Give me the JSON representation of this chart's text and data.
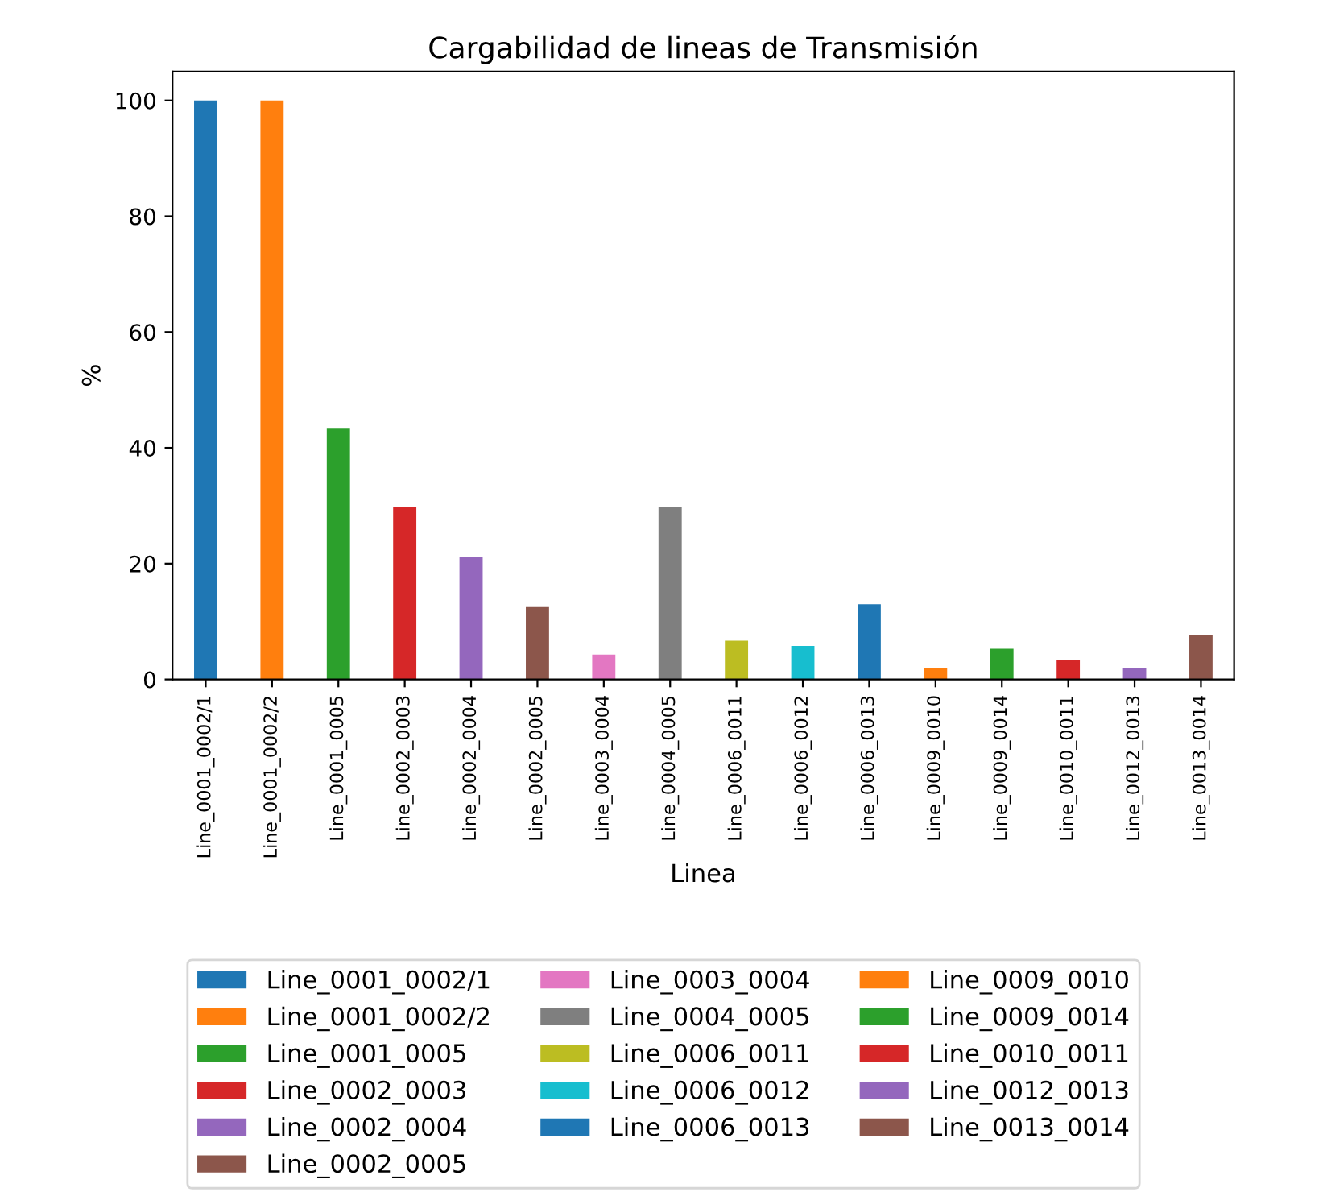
{
  "chart_data": {
    "type": "bar",
    "title": "Cargabilidad de lineas de Transmisión",
    "xlabel": "Linea",
    "ylabel": "%",
    "categories": [
      "Line_0001_0002/1",
      "Line_0001_0002/2",
      "Line_0001_0005",
      "Line_0002_0003",
      "Line_0002_0004",
      "Line_0002_0005",
      "Line_0003_0004",
      "Line_0004_0005",
      "Line_0006_0011",
      "Line_0006_0012",
      "Line_0006_0013",
      "Line_0009_0010",
      "Line_0009_0014",
      "Line_0010_0011",
      "Line_0012_0013",
      "Line_0013_0014"
    ],
    "series": [
      {
        "name": "Line_0001_0002/1",
        "color": "#1f77b4",
        "values": [
          100,
          null,
          null,
          null,
          null,
          null,
          null,
          null,
          null,
          null,
          null,
          null,
          null,
          null,
          null,
          null
        ]
      },
      {
        "name": "Line_0001_0002/2",
        "color": "#ff7f0e",
        "values": [
          null,
          100,
          null,
          null,
          null,
          null,
          null,
          null,
          null,
          null,
          null,
          null,
          null,
          null,
          null,
          null
        ]
      },
      {
        "name": "Line_0001_0005",
        "color": "#2ca02c",
        "values": [
          null,
          null,
          43.3,
          null,
          null,
          null,
          null,
          null,
          null,
          null,
          null,
          null,
          null,
          null,
          null,
          null
        ]
      },
      {
        "name": "Line_0002_0003",
        "color": "#d62728",
        "values": [
          null,
          null,
          null,
          29.8,
          null,
          null,
          null,
          null,
          null,
          null,
          null,
          null,
          null,
          null,
          null,
          null
        ]
      },
      {
        "name": "Line_0002_0004",
        "color": "#9467bd",
        "values": [
          null,
          null,
          null,
          null,
          21.1,
          null,
          null,
          null,
          null,
          null,
          null,
          null,
          null,
          null,
          null,
          null
        ]
      },
      {
        "name": "Line_0002_0005",
        "color": "#8c564b",
        "values": [
          null,
          null,
          null,
          null,
          null,
          12.5,
          null,
          null,
          null,
          null,
          null,
          null,
          null,
          null,
          null,
          null
        ]
      },
      {
        "name": "Line_0003_0004",
        "color": "#e377c2",
        "values": [
          null,
          null,
          null,
          null,
          null,
          null,
          4.3,
          null,
          null,
          null,
          null,
          null,
          null,
          null,
          null,
          null
        ]
      },
      {
        "name": "Line_0004_0005",
        "color": "#7f7f7f",
        "values": [
          null,
          null,
          null,
          null,
          null,
          null,
          null,
          29.8,
          null,
          null,
          null,
          null,
          null,
          null,
          null,
          null
        ]
      },
      {
        "name": "Line_0006_0011",
        "color": "#bcbd22",
        "values": [
          null,
          null,
          null,
          null,
          null,
          null,
          null,
          null,
          6.7,
          null,
          null,
          null,
          null,
          null,
          null,
          null
        ]
      },
      {
        "name": "Line_0006_0012",
        "color": "#17becf",
        "values": [
          null,
          null,
          null,
          null,
          null,
          null,
          null,
          null,
          null,
          5.8,
          null,
          null,
          null,
          null,
          null,
          null
        ]
      },
      {
        "name": "Line_0006_0013",
        "color": "#1f77b4",
        "values": [
          null,
          null,
          null,
          null,
          null,
          null,
          null,
          null,
          null,
          null,
          13.0,
          null,
          null,
          null,
          null,
          null
        ]
      },
      {
        "name": "Line_0009_0010",
        "color": "#ff7f0e",
        "values": [
          null,
          null,
          null,
          null,
          null,
          null,
          null,
          null,
          null,
          null,
          null,
          1.9,
          null,
          null,
          null,
          null
        ]
      },
      {
        "name": "Line_0009_0014",
        "color": "#2ca02c",
        "values": [
          null,
          null,
          null,
          null,
          null,
          null,
          null,
          null,
          null,
          null,
          null,
          null,
          5.3,
          null,
          null,
          null
        ]
      },
      {
        "name": "Line_0010_0011",
        "color": "#d62728",
        "values": [
          null,
          null,
          null,
          null,
          null,
          null,
          null,
          null,
          null,
          null,
          null,
          null,
          null,
          3.4,
          null,
          null
        ]
      },
      {
        "name": "Line_0012_0013",
        "color": "#9467bd",
        "values": [
          null,
          null,
          null,
          null,
          null,
          null,
          null,
          null,
          null,
          null,
          null,
          null,
          null,
          null,
          1.9,
          null
        ]
      },
      {
        "name": "Line_0013_0014",
        "color": "#8c564b",
        "values": [
          null,
          null,
          null,
          null,
          null,
          null,
          null,
          null,
          null,
          null,
          null,
          null,
          null,
          null,
          null,
          7.6
        ]
      }
    ],
    "ylim": [
      0,
      105
    ],
    "yticks": [
      0,
      20,
      40,
      60,
      80,
      100
    ],
    "legend": "bottom"
  }
}
